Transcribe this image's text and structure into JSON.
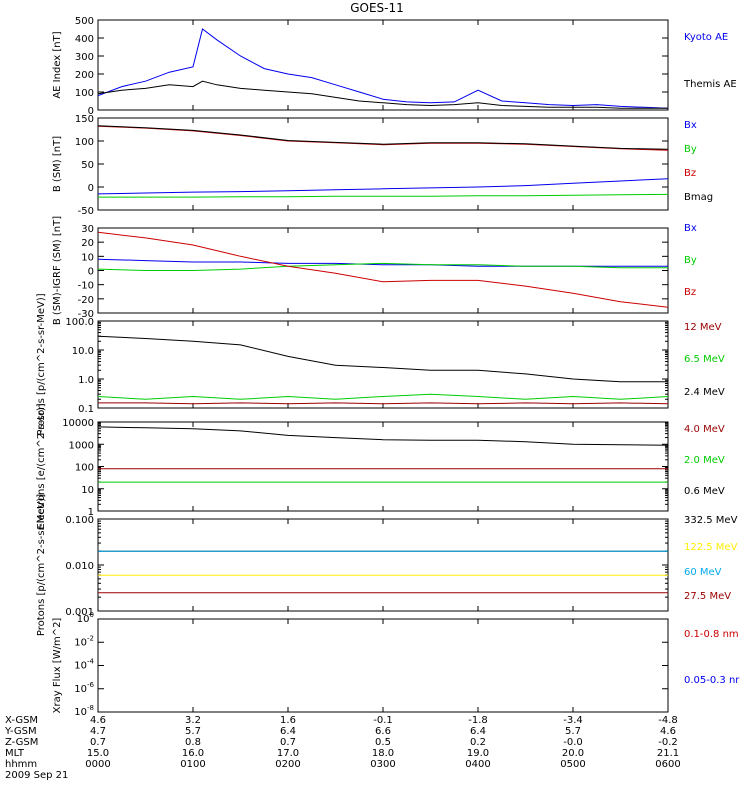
{
  "title": "GOES-11",
  "colors": {
    "black": "#000000",
    "blue": "#0000ee",
    "red": "#cc0000",
    "green": "#00cc00",
    "darkred": "#990000",
    "cyan": "#00aaee",
    "yellow": "#ffee00"
  },
  "ephemeris": {
    "labels": [
      "X-GSM",
      "Y-GSM",
      "Z-GSM",
      "MLT",
      "hhmm",
      "2009 Sep 21"
    ],
    "rows": [
      [
        "4.6",
        "3.2",
        "1.6",
        "-0.1",
        "-1.8",
        "-3.4",
        "-4.8"
      ],
      [
        "4.7",
        "5.7",
        "6.4",
        "6.6",
        "6.4",
        "5.7",
        "4.6"
      ],
      [
        "0.7",
        "0.8",
        "0.7",
        "0.5",
        "0.2",
        "-0.0",
        "-0.2"
      ],
      [
        "15.0",
        "16.0",
        "17.0",
        "18.0",
        "19.0",
        "20.0",
        "21.1"
      ],
      [
        "0000",
        "0100",
        "0200",
        "0300",
        "0400",
        "0500",
        "0600"
      ]
    ]
  },
  "chart_data": [
    {
      "type": "line",
      "ylabel": "AE Index [nT]",
      "ylim": [
        0,
        500
      ],
      "yticks": [
        "0",
        "100",
        "200",
        "300",
        "400",
        "500"
      ],
      "x": [
        0,
        0.25,
        0.5,
        0.75,
        1.0,
        1.1,
        1.25,
        1.5,
        1.75,
        2.0,
        2.25,
        2.5,
        2.75,
        3.0,
        3.25,
        3.5,
        3.75,
        4.0,
        4.25,
        4.5,
        4.75,
        5.0,
        5.25,
        5.5,
        5.75,
        6.0
      ],
      "series": [
        {
          "name": "Kyoto AE",
          "color": "blue",
          "values": [
            80,
            130,
            160,
            210,
            240,
            450,
            390,
            300,
            230,
            200,
            180,
            140,
            100,
            60,
            45,
            40,
            45,
            110,
            50,
            40,
            30,
            25,
            30,
            20,
            15,
            10
          ]
        },
        {
          "name": "Themis AE",
          "color": "black",
          "values": [
            90,
            110,
            120,
            140,
            130,
            160,
            140,
            120,
            110,
            100,
            90,
            70,
            50,
            40,
            30,
            25,
            30,
            40,
            25,
            20,
            15,
            15,
            15,
            10,
            10,
            10
          ]
        }
      ]
    },
    {
      "type": "line",
      "ylabel": "B (SM) [nT]",
      "ylim": [
        -50,
        150
      ],
      "yticks": [
        "-50",
        "0",
        "50",
        "100",
        "150"
      ],
      "x": [
        0,
        0.5,
        1.0,
        1.5,
        2.0,
        2.5,
        3.0,
        3.5,
        4.0,
        4.5,
        5.0,
        5.5,
        6.0
      ],
      "series": [
        {
          "name": "Bx",
          "color": "blue",
          "values": [
            -15,
            -13,
            -11,
            -10,
            -8,
            -6,
            -4,
            -2,
            0,
            3,
            8,
            13,
            18
          ]
        },
        {
          "name": "By",
          "color": "green",
          "values": [
            -22,
            -22,
            -22,
            -21,
            -21,
            -20,
            -20,
            -20,
            -19,
            -19,
            -18,
            -17,
            -16
          ]
        },
        {
          "name": "Bz",
          "color": "red",
          "values": [
            132,
            128,
            122,
            112,
            100,
            96,
            92,
            95,
            95,
            93,
            88,
            83,
            80
          ]
        },
        {
          "name": "Bmag",
          "color": "black",
          "values": [
            133,
            129,
            123,
            113,
            101,
            97,
            93,
            96,
            96,
            94,
            89,
            84,
            82
          ]
        }
      ]
    },
    {
      "type": "line",
      "ylabel": "B (SM)-IGRF (SM) [nT]",
      "ylim": [
        -30,
        30
      ],
      "yticks": [
        "-30",
        "-20",
        "-10",
        "0",
        "10",
        "20",
        "30"
      ],
      "x": [
        0,
        0.5,
        1.0,
        1.5,
        2.0,
        2.5,
        3.0,
        3.5,
        4.0,
        4.5,
        5.0,
        5.5,
        6.0
      ],
      "series": [
        {
          "name": "Bx",
          "color": "blue",
          "values": [
            8,
            7,
            6,
            6,
            5,
            5,
            4,
            4,
            3,
            3,
            3,
            3,
            3
          ]
        },
        {
          "name": "By",
          "color": "green",
          "values": [
            1,
            0,
            0,
            1,
            3,
            4,
            5,
            4,
            4,
            3,
            3,
            2,
            2
          ]
        },
        {
          "name": "Bz",
          "color": "red",
          "values": [
            27,
            23,
            18,
            10,
            3,
            -2,
            -8,
            -7,
            -7,
            -11,
            -16,
            -22,
            -26
          ]
        }
      ]
    },
    {
      "type": "line",
      "log": true,
      "ylabel": "Protons [p/(cm^2-s-sr-MeV)]",
      "ylim": [
        0.1,
        100
      ],
      "yticks": [
        "0.1",
        "1.0",
        "10.0",
        "100.0"
      ],
      "x": [
        0,
        0.5,
        1.0,
        1.5,
        2.0,
        2.5,
        3.0,
        3.5,
        4.0,
        4.5,
        5.0,
        5.5,
        6.0
      ],
      "series": [
        {
          "name": "12 MeV",
          "color": "darkred",
          "values": [
            0.15,
            0.15,
            0.14,
            0.15,
            0.14,
            0.15,
            0.14,
            0.15,
            0.14,
            0.15,
            0.14,
            0.15,
            0.14
          ]
        },
        {
          "name": "6.5 MeV",
          "color": "green",
          "values": [
            0.25,
            0.2,
            0.25,
            0.2,
            0.25,
            0.2,
            0.25,
            0.3,
            0.25,
            0.2,
            0.25,
            0.2,
            0.25
          ]
        },
        {
          "name": "2.4 MeV",
          "color": "black",
          "values": [
            30,
            25,
            20,
            15,
            6,
            3,
            2.5,
            2,
            2,
            1.5,
            1,
            0.8,
            0.8
          ]
        }
      ]
    },
    {
      "type": "line",
      "log": true,
      "ylabel": "Electrons [e/(cm^2-s-sr)]",
      "ylim": [
        1,
        10000
      ],
      "yticks": [
        "1",
        "10",
        "100",
        "1000",
        "10000"
      ],
      "x": [
        0,
        0.5,
        1.0,
        1.5,
        2.0,
        2.5,
        3.0,
        3.5,
        4.0,
        4.5,
        5.0,
        5.5,
        6.0
      ],
      "series": [
        {
          "name": "4.0 MeV",
          "color": "darkred",
          "values": [
            80,
            80,
            80,
            80,
            80,
            80,
            80,
            80,
            80,
            80,
            80,
            80,
            80
          ]
        },
        {
          "name": "2.0 MeV",
          "color": "green",
          "values": [
            20,
            20,
            20,
            20,
            20,
            20,
            20,
            20,
            20,
            20,
            20,
            20,
            20
          ]
        },
        {
          "name": "0.6 MeV",
          "color": "black",
          "values": [
            6000,
            5500,
            5000,
            4000,
            2500,
            2000,
            1600,
            1500,
            1500,
            1300,
            1000,
            950,
            900
          ]
        }
      ]
    },
    {
      "type": "line",
      "log": true,
      "ylabel": "Protons [p/(cm^2-s-sr-MeV)]",
      "ylim": [
        0.001,
        0.1
      ],
      "yticks": [
        "0.001",
        "0.010",
        "0.100"
      ],
      "x": [
        0,
        0.5,
        1.0,
        1.5,
        2.0,
        2.5,
        3.0,
        3.5,
        4.0,
        4.5,
        5.0,
        5.5,
        6.0
      ],
      "series": [
        {
          "name": "332.5 MeV",
          "color": "black",
          "values": [
            0.02,
            0.02,
            0.02,
            0.02,
            0.02,
            0.02,
            0.02,
            0.02,
            0.02,
            0.02,
            0.02,
            0.02,
            0.02
          ]
        },
        {
          "name": "122.5 MeV",
          "color": "yellow",
          "values": [
            0.006,
            0.006,
            0.006,
            0.006,
            0.006,
            0.006,
            0.006,
            0.006,
            0.006,
            0.006,
            0.006,
            0.006,
            0.006
          ]
        },
        {
          "name": "60 MeV",
          "color": "cyan",
          "values": [
            0.02,
            0.02,
            0.02,
            0.02,
            0.02,
            0.02,
            0.02,
            0.02,
            0.02,
            0.02,
            0.02,
            0.02,
            0.02
          ]
        },
        {
          "name": "27.5 MeV",
          "color": "darkred",
          "values": [
            0.0025,
            0.0025,
            0.0025,
            0.0025,
            0.0025,
            0.0025,
            0.0025,
            0.0025,
            0.0025,
            0.0025,
            0.0025,
            0.0025,
            0.0025
          ]
        }
      ]
    },
    {
      "type": "line",
      "log": true,
      "ylabel": "Xray Flux [W/m^2]",
      "ylim": [
        1e-08,
        1
      ],
      "yticks": [
        "10^-8",
        "10^-6",
        "10^-4",
        "10^-2",
        "10^0"
      ],
      "x": [],
      "series": [
        {
          "name": "0.1-0.8 nm",
          "color": "red",
          "values": []
        },
        {
          "name": "0.05-0.3 nr",
          "color": "blue",
          "values": []
        }
      ]
    }
  ]
}
